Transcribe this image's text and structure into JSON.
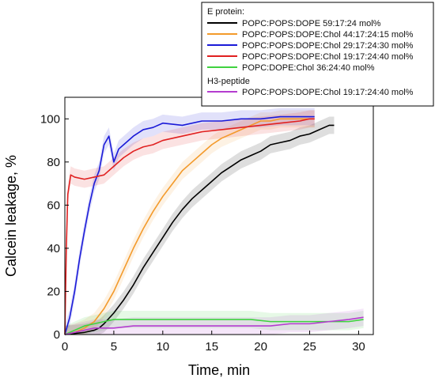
{
  "chart_data": {
    "type": "line",
    "xlabel": "Time, min",
    "ylabel": "Calcein leakage, %",
    "xlim": [
      0,
      31.5
    ],
    "ylim": [
      0,
      110
    ],
    "xticks": [
      0,
      5,
      10,
      15,
      20,
      25,
      30
    ],
    "yticks": [
      0,
      20,
      40,
      60,
      80,
      100
    ],
    "legend": {
      "placement": "top-right",
      "group_labels": [
        "E protein:",
        "H3-peptide"
      ]
    },
    "series": [
      {
        "name": "POPC:POPS:DOPE 59:17:24 mol%",
        "group": "E protein:",
        "color": "#000000",
        "x": [
          0,
          2,
          3,
          3.5,
          4,
          5,
          6,
          7,
          8,
          9,
          10,
          11,
          12,
          13,
          14,
          15,
          16,
          17,
          18,
          19,
          20,
          21,
          22,
          23,
          24,
          25,
          26,
          27,
          27.5
        ],
        "y": [
          0,
          1,
          2,
          3,
          5,
          10,
          16,
          23,
          31,
          38,
          45,
          52,
          58,
          63,
          67,
          71,
          75,
          78,
          81,
          83,
          85,
          88,
          89,
          90,
          92,
          93,
          95,
          97,
          97
        ]
      },
      {
        "name": "POPC:POPS:DOPE:Chol 44:17:24:15 mol%",
        "group": "E protein:",
        "color": "#f39a2b",
        "x": [
          0,
          1,
          2,
          3,
          4,
          5,
          6,
          7,
          8,
          9,
          10,
          11,
          12,
          13,
          14,
          15,
          16,
          17,
          18,
          19,
          20,
          21,
          22,
          23,
          24,
          25,
          25.5
        ],
        "y": [
          0,
          1,
          3,
          6,
          12,
          20,
          30,
          40,
          49,
          57,
          64,
          70,
          76,
          80,
          84,
          88,
          91,
          93,
          95,
          97,
          99,
          99,
          100,
          100,
          100,
          100,
          100
        ]
      },
      {
        "name": "POPC:POPS:DOPE:Chol 29:17:24:30 mol%",
        "group": "E protein:",
        "color": "#1a1ad8",
        "x": [
          0,
          0.5,
          1,
          1.5,
          2,
          2.5,
          3,
          3.5,
          4,
          4.5,
          5,
          5.5,
          6,
          7,
          8,
          9,
          10,
          12,
          14,
          16,
          18,
          20,
          22,
          24,
          25.5
        ],
        "y": [
          0,
          8,
          20,
          35,
          48,
          60,
          70,
          76,
          88,
          92,
          80,
          86,
          88,
          92,
          95,
          96,
          98,
          97,
          99,
          99,
          100,
          100,
          101,
          101,
          101
        ]
      },
      {
        "name": "POPC:POPS:DOPE:Chol 19:17:24:40 mol%",
        "group": "E protein:",
        "color": "#e02020",
        "x": [
          0,
          0.15,
          0.3,
          0.6,
          1,
          2,
          3,
          4,
          5,
          6,
          7,
          8,
          9,
          10,
          12,
          14,
          16,
          18,
          20,
          22,
          24,
          25,
          25.5
        ],
        "y": [
          0,
          40,
          65,
          74,
          73,
          72,
          73,
          74,
          78,
          82,
          85,
          87,
          88,
          90,
          92,
          94,
          95,
          96,
          97,
          98,
          99,
          100,
          100
        ]
      },
      {
        "name": "POPC:DOPE:Chol 36:24:40 mol%",
        "group": "E protein:",
        "color": "#3fd23f",
        "x": [
          0,
          1,
          2,
          3,
          4,
          5,
          7,
          9,
          11,
          13,
          15,
          17,
          19,
          21,
          23,
          25,
          27,
          29,
          30.5
        ],
        "y": [
          0,
          2,
          4,
          5,
          6,
          7,
          7,
          7,
          7,
          7,
          7,
          7,
          7,
          6,
          6,
          6,
          6,
          6,
          7
        ]
      },
      {
        "name": "POPC:POPS:DOPE:Chol 19:17:24:40 mol%",
        "group": "H3-peptide",
        "color": "#b43ccf",
        "x": [
          0,
          1,
          2,
          3,
          4,
          5,
          7,
          9,
          11,
          13,
          15,
          17,
          19,
          21,
          23,
          25,
          27,
          29,
          30.5
        ],
        "y": [
          0,
          1,
          2,
          3,
          3,
          3,
          4,
          4,
          4,
          4,
          4,
          4,
          4,
          4,
          5,
          5,
          6,
          7,
          8
        ]
      }
    ]
  }
}
